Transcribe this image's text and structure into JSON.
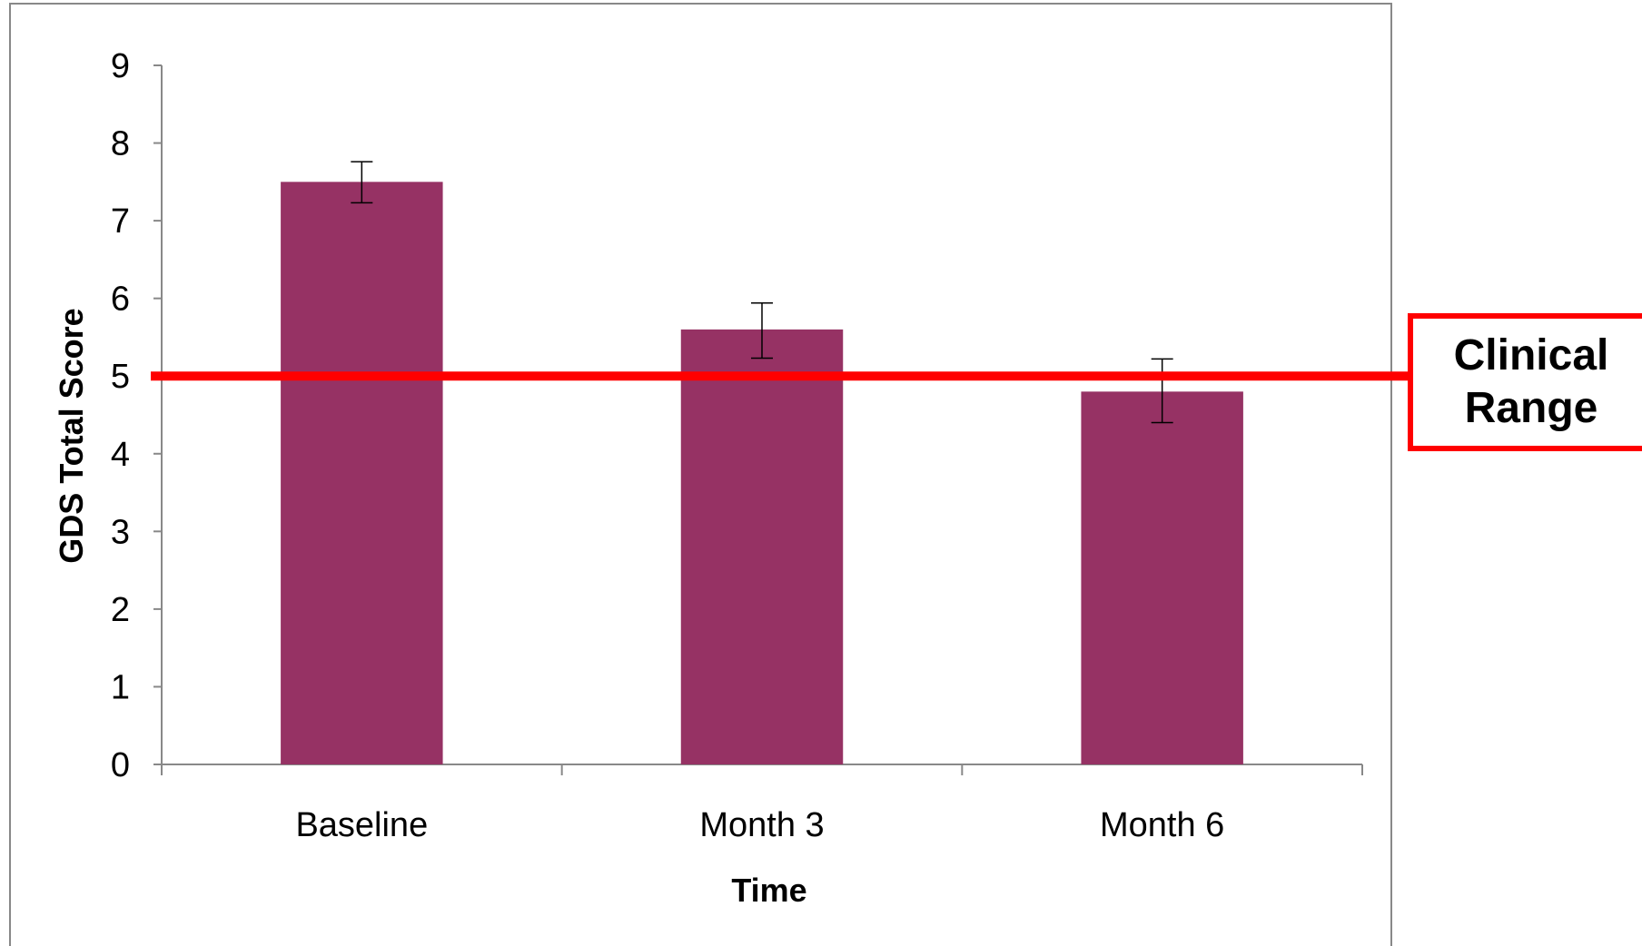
{
  "chart_data": {
    "type": "bar",
    "categories": [
      "Baseline",
      "Month 3",
      "Month 6"
    ],
    "values": [
      7.5,
      5.6,
      4.8
    ],
    "error_bars": [
      {
        "low": 7.23,
        "high": 7.76
      },
      {
        "low": 5.23,
        "high": 5.94
      },
      {
        "low": 4.4,
        "high": 5.22
      }
    ],
    "xlabel": "Time",
    "ylabel": "GDS Total Score",
    "ylim": [
      0,
      9
    ],
    "yticks": [
      "0",
      "1",
      "2",
      "3",
      "4",
      "5",
      "6",
      "7",
      "8",
      "9"
    ],
    "grid": false,
    "bar_color": "#963264",
    "reference_line": {
      "value": 5,
      "color": "#ff0000",
      "label_lines": [
        "Clinical",
        "Range"
      ]
    }
  }
}
